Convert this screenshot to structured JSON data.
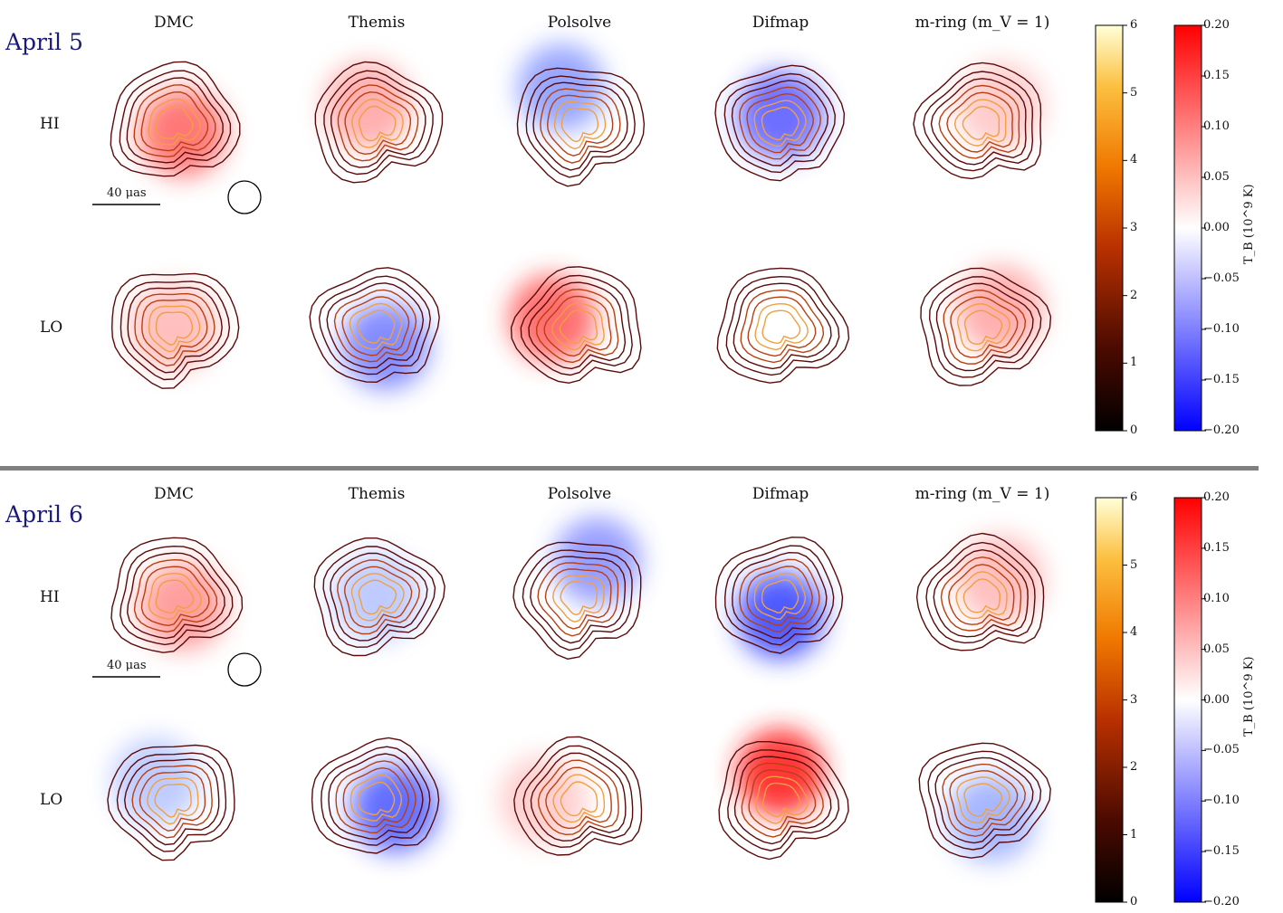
{
  "panels": [
    {
      "date_label": "April 5",
      "columns": [
        "DMC",
        "Themis",
        "Polsolve",
        "Difmap",
        "m-ring (m_V = 1)"
      ],
      "rows": [
        "HI",
        "LO"
      ]
    },
    {
      "date_label": "April 6",
      "columns": [
        "DMC",
        "Themis",
        "Polsolve",
        "Difmap",
        "m-ring (m_V = 1)"
      ],
      "rows": [
        "HI",
        "LO"
      ]
    }
  ],
  "scale_bar": "40 μas",
  "colorbar_intensity": {
    "ticks": [
      "0",
      "1",
      "2",
      "3",
      "4",
      "5",
      "6"
    ]
  },
  "colorbar_circular": {
    "ticks": [
      "−0.20",
      "−0.15",
      "−0.10",
      "−0.05",
      "0.00",
      "0.05",
      "0.10",
      "0.15",
      "0.20"
    ],
    "label": "T_B (10^9 K)",
    "colors": {
      "low": "#0000ff",
      "mid": "#ffffff",
      "high": "#ff0000"
    }
  },
  "colors": {
    "separator": "#808080",
    "contour_dark": "#5a0a0a",
    "contour_light": "#ffd27a"
  }
}
